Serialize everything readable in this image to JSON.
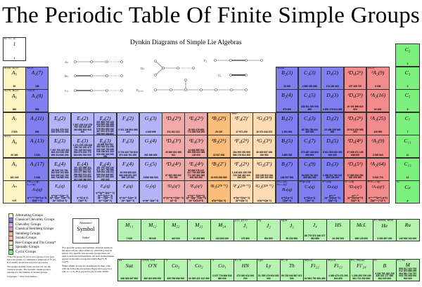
{
  "title": "The Periodic Table Of Finite Simple Groups",
  "dynkin": {
    "title": "Dynkin Diagrams of Simple Lie Algebras",
    "labels": {
      "an": "Aₙ",
      "bn": "Bₙ",
      "cn": "Cₙ",
      "dn": "Dₙ",
      "f4": "F₄",
      "g2": "G₂",
      "e": "E₆,₇,₈"
    }
  },
  "colors": {
    "alternating": "#fcf4c4",
    "classical_chevalley": "#7f7ff2",
    "chevalley": "#b4b4fa",
    "classical_steinberg": "#f28c8c",
    "steinberg": "#f4a9a9",
    "suzuki": "#fbbd7a",
    "ree": "#fddcb6",
    "sporadic": "#b6f2b0",
    "cyclic": "#7cf07c"
  },
  "key_cell": {
    "top": "A₁, C₁, Z₁",
    "sym": "1",
    "ord": "1"
  },
  "table": {
    "rows": [
      [
        {
          "col": 0,
          "t": "alternating",
          "top": "A₁(4), A₁(5)",
          "sym": "A₅",
          "ord": "60"
        },
        {
          "col": 1,
          "t": "classical_chevalley",
          "top": "A₂(2)",
          "sym": "A₁(7)",
          "ord": "168"
        },
        {
          "col": 12,
          "t": "classical_chevalley",
          "top": "²A₃(4)",
          "sym": "B₂(3)",
          "ord": "25 920"
        },
        {
          "col": 13,
          "t": "classical_chevalley",
          "top": "",
          "sym": "C₃(3)",
          "ord": "4 585 351 680"
        },
        {
          "col": 14,
          "t": "classical_chevalley",
          "top": "",
          "sym": "D₄(2)",
          "ord": "174 182 400"
        },
        {
          "col": 15,
          "t": "classical_steinberg",
          "top": "",
          "sym": "²D₄(2²)",
          "ord": "197 406 720"
        },
        {
          "col": 16,
          "t": "classical_steinberg",
          "top": "G₂(2)′",
          "sym": "²A₂(9)",
          "ord": "6 048"
        }
      ],
      [
        {
          "col": 0,
          "t": "alternating",
          "top": "A₁(9), B₂(2)′",
          "sym": "A₆",
          "ord": "360"
        },
        {
          "col": 1,
          "t": "classical_chevalley",
          "top": "²G₂(3)′",
          "sym": "A₁(8)",
          "ord": "504"
        },
        {
          "col": 12,
          "t": "classical_chevalley",
          "top": "",
          "sym": "B₂(4)",
          "ord": "979 200"
        },
        {
          "col": 13,
          "t": "classical_chevalley",
          "top": "",
          "sym": "C₃(5)",
          "ord": "228 501 000 000 000"
        },
        {
          "col": 14,
          "t": "classical_chevalley",
          "top": "",
          "sym": "D₄(3)",
          "ord": "4 952 179 814 400"
        },
        {
          "col": 15,
          "t": "classical_steinberg",
          "top": "",
          "sym": "²D₄(3²)",
          "ord": "10 151 968 619 520"
        },
        {
          "col": 16,
          "t": "classical_steinberg",
          "top": "",
          "sym": "²A₂(16)",
          "ord": "62 400"
        }
      ],
      [
        {
          "col": 0,
          "t": "alternating",
          "top": "",
          "sym": "A₇",
          "ord": "2 520"
        },
        {
          "col": 1,
          "t": "classical_chevalley",
          "top": "",
          "sym": "A₁(11)",
          "ord": "660"
        },
        {
          "col": 2,
          "t": "chevalley",
          "top": "",
          "sym": "E₆(2)",
          "ord": "214 841 575 522 005 575 270 400"
        },
        {
          "col": 3,
          "t": "chevalley",
          "top": "",
          "sym": "E₇(2)",
          "ord": "7 997 476 042 075 799 759 100 487 262 680 802 918 400"
        },
        {
          "col": 4,
          "t": "chevalley",
          "top": "",
          "sym": "E₈(2)",
          "ord": "337 804 753 143 634 806 261 388 190 614 085 595 079 991 692 242 467 651 576 160 959 909 068 800 000"
        },
        {
          "col": 5,
          "t": "chevalley",
          "top": "",
          "sym": "F₄(2)",
          "ord": "3 311 126 603 366 400"
        },
        {
          "col": 6,
          "t": "chevalley",
          "top": "",
          "sym": "G₂(3)",
          "ord": "4 245 696"
        },
        {
          "col": 7,
          "t": "steinberg",
          "top": "",
          "sym": "³D₄(2³)",
          "ord": "211 341 312"
        },
        {
          "col": 8,
          "t": "steinberg",
          "top": "",
          "sym": "²E₆(2²)",
          "ord": "76 532 479 683 774 853 939 200"
        },
        {
          "col": 9,
          "t": "suzuki",
          "top": "",
          "sym": "²B₂(2³)",
          "ord": "29 120"
        },
        {
          "col": 10,
          "t": "ree",
          "top": "Tits*",
          "sym": "²F₄(2)′",
          "ord": "17 971 200"
        },
        {
          "col": 11,
          "t": "ree",
          "top": "",
          "sym": "²G₂(3³)",
          "ord": "10 073 444 472"
        },
        {
          "col": 12,
          "t": "classical_chevalley",
          "top": "",
          "sym": "B₃(2)",
          "ord": "1 451 520"
        },
        {
          "col": 13,
          "t": "classical_chevalley",
          "top": "",
          "sym": "C₄(3)",
          "ord": "65 784 756 654 489 600"
        },
        {
          "col": 14,
          "t": "classical_chevalley",
          "top": "",
          "sym": "D₅(2)",
          "ord": "23 499 295 948 800"
        },
        {
          "col": 15,
          "t": "classical_steinberg",
          "top": "",
          "sym": "²D₅(2²)",
          "ord": "25 015 379 558 400"
        },
        {
          "col": 16,
          "t": "classical_steinberg",
          "top": "",
          "sym": "²A₂(25)",
          "ord": "126 000"
        }
      ],
      [
        {
          "col": 0,
          "t": "alternating",
          "top": "A₃(2)",
          "sym": "A₈",
          "ord": "20 160"
        },
        {
          "col": 1,
          "t": "classical_chevalley",
          "top": "",
          "sym": "A₁(13)",
          "ord": "1 092"
        },
        {
          "col": 2,
          "t": "chevalley",
          "top": "",
          "sym": "E₆(3)",
          "ord": "7 257 703 347 541 463 210 028 258 395 214 643 200"
        },
        {
          "col": 3,
          "t": "chevalley",
          "top": "",
          "sym": "E₇(3)",
          "ord": "1 271 375 236 818 136 742 240 479 751 139 021 644 554 379 203 770 624 000 000 000"
        },
        {
          "col": 4,
          "t": "chevalley",
          "top": "",
          "sym": "E₈(3)",
          "ord": "18 830 052 912 953 932 311 099 032 439 793 939 036 166 811 300 000 000 000 000 000"
        },
        {
          "col": 5,
          "t": "chevalley",
          "top": "",
          "sym": "F₄(3)",
          "ord": "5 734 420 792 816 671 844 761 600"
        },
        {
          "col": 6,
          "t": "chevalley",
          "top": "",
          "sym": "G₂(4)",
          "ord": "251 596 800"
        },
        {
          "col": 7,
          "t": "steinberg",
          "top": "",
          "sym": "³D₄(3³)",
          "ord": "20 560 831 566 912"
        },
        {
          "col": 8,
          "t": "steinberg",
          "top": "",
          "sym": "²E₆(3²)",
          "ord": "14 636 855 916 969 695 633 965 120 000"
        },
        {
          "col": 9,
          "t": "suzuki",
          "top": "",
          "sym": "²B₂(2⁵)",
          "ord": "32 537 600"
        },
        {
          "col": 10,
          "t": "ree",
          "top": "",
          "sym": "²F₄(2³)",
          "ord": "264 905 352 699 586 176 614 400"
        },
        {
          "col": 11,
          "t": "ree",
          "top": "",
          "sym": "²G₂(3⁵)",
          "ord": "49 825 657 439 340 552"
        },
        {
          "col": 12,
          "t": "classical_chevalley",
          "top": "",
          "sym": "B₂(5)",
          "ord": "4 680 000"
        },
        {
          "col": 13,
          "t": "classical_chevalley",
          "top": "",
          "sym": "C₃(7)",
          "ord": "273 457 218 604 953 600"
        },
        {
          "col": 14,
          "t": "classical_chevalley",
          "top": "",
          "sym": "D₄(5)",
          "ord": "8 911 539 000 000 000 000"
        },
        {
          "col": 15,
          "t": "classical_steinberg",
          "top": "",
          "sym": "²D₄(4²)",
          "ord": "67 536 471 195 648 000"
        },
        {
          "col": 16,
          "t": "classical_steinberg",
          "top": "",
          "sym": "²A₃(9)",
          "ord": "3 265 920"
        }
      ],
      [
        {
          "col": 0,
          "t": "alternating",
          "top": "",
          "sym": "A₉",
          "ord": "181 440"
        },
        {
          "col": 1,
          "t": "classical_chevalley",
          "top": "",
          "sym": "A₁(17)",
          "ord": "2 448"
        },
        {
          "col": 2,
          "t": "chevalley",
          "top": "",
          "sym": "E₆(4)",
          "ord": "85 528 710 781 342 640 103 833 619 055 142 765 466 746 880 000"
        },
        {
          "col": 3,
          "t": "chevalley",
          "top": "",
          "sym": "E₇(4)",
          "ord": "111 131 458 114 940 385 379 597 233 477 884 941 280 664 074 427 160 058 165 808 312 238 080 000"
        },
        {
          "col": 4,
          "t": "chevalley",
          "top": "",
          "sym": "E₈(4)",
          "ord": "191 797 292 142 671 067 785 580 289 004 148 102 069 024 046 467 184 470 681 600 000 000"
        },
        {
          "col": 5,
          "t": "chevalley",
          "top": "",
          "sym": "F₄(4)",
          "ord": "19 009 825 523 840 945 451 297 669 120 000"
        },
        {
          "col": 6,
          "t": "chevalley",
          "top": "",
          "sym": "G₂(5)",
          "ord": "5 859 000 000"
        },
        {
          "col": 7,
          "t": "steinberg",
          "top": "",
          "sym": "³D₄(4³)",
          "ord": "67 802 350 642 790 400"
        },
        {
          "col": 8,
          "t": "steinberg",
          "top": "",
          "sym": "²E₆(4²)",
          "ord": "85 696 576 147 617 709 485 896 772 387 584 983 695 360 000"
        },
        {
          "col": 9,
          "t": "suzuki",
          "top": "",
          "sym": "²B₂(2⁷)",
          "ord": "34 093 383 680"
        },
        {
          "col": 10,
          "t": "ree",
          "top": "",
          "sym": "²F₄(2⁵)",
          "ord": "1 318 633 155 799 729 326 462 320 640 000"
        },
        {
          "col": 11,
          "t": "ree",
          "top": "",
          "sym": "²G₂(3⁷)",
          "ord": "239 189 910 264 352 349 332 632"
        },
        {
          "col": 12,
          "t": "classical_chevalley",
          "top": "",
          "sym": "B₂(7)",
          "ord": "138 297 600"
        },
        {
          "col": 13,
          "t": "classical_chevalley",
          "top": "",
          "sym": "C₃(9)",
          "ord": "54 025 731 402 499 584 000"
        },
        {
          "col": 14,
          "t": "classical_chevalley",
          "top": "",
          "sym": "D₅(3)",
          "ord": "1 289 512 799 941 305 139 200"
        },
        {
          "col": 15,
          "t": "classical_steinberg",
          "top": "",
          "sym": "²D₄(5²)",
          "ord": "17 880 203 250 000 000 000"
        },
        {
          "col": 16,
          "t": "classical_steinberg",
          "top": "",
          "sym": "²A₂(64)",
          "ord": "5 515 776"
        }
      ],
      [
        {
          "col": 0,
          "t": "alternating",
          "top": "",
          "sym": "Aₙ",
          "ord": "n!/2"
        },
        {
          "col": 1,
          "t": "classical_chevalley",
          "top": "PSLₙ₊₁(q), Lₙ₊₁(q)",
          "sym": "Aₙ(q)",
          "ord": "qⁿ⁽ⁿ⁺¹⁾ᐟ²/(n+1,q−1) ∏(qⁱ⁺¹−1)"
        },
        {
          "col": 2,
          "t": "chevalley",
          "top": "",
          "sym": "E₆(q)",
          "ord": "q³⁶(q¹²−1)(q⁹−1)(q⁸−1)(q⁶−1)(q⁵−1)(q²−1)/(3,q−1)"
        },
        {
          "col": 3,
          "t": "chevalley",
          "top": "",
          "sym": "E₇(q)",
          "ord": "q⁶³/(2,q−1) ∏(q²ⁱ−1)"
        },
        {
          "col": 4,
          "t": "chevalley",
          "top": "",
          "sym": "E₈(q)",
          "ord": "q¹²⁰(q³⁰−1)(q²⁴−1)(q²⁰−1)(q¹⁸−1)(q¹⁴−1)(q¹²−1)(q⁸−1)(q²−1)"
        },
        {
          "col": 5,
          "t": "chevalley",
          "top": "",
          "sym": "F₄(q)",
          "ord": "q²⁴(q¹²−1)(q⁸−1)(q⁶−1)(q²−1)"
        },
        {
          "col": 6,
          "t": "chevalley",
          "top": "",
          "sym": "G₂(q)",
          "ord": "q⁶(q⁶−1)(q²−1)"
        },
        {
          "col": 7,
          "t": "steinberg",
          "top": "",
          "sym": "³D₄(q³)",
          "ord": "q¹²(q⁸+q⁴+1)(q⁶−1)(q²−1)"
        },
        {
          "col": 8,
          "t": "steinberg",
          "top": "",
          "sym": "²E₆(q²)",
          "ord": "q³⁶(q¹²−1)(q⁹+1)(q⁸−1)(q⁶−1)(q⁵+1)(q²−1)/(3,q+1)"
        },
        {
          "col": 9,
          "t": "suzuki",
          "top": "",
          "sym": "²B₂(2²ⁿ⁺¹)",
          "ord": "q²(q²+1)(q−1)"
        },
        {
          "col": 10,
          "t": "ree",
          "top": "",
          "sym": "²F₄(2²ⁿ⁺¹)",
          "ord": "q¹²(q⁶+1)(q⁴−1)(q³+1)(q−1)"
        },
        {
          "col": 11,
          "t": "ree",
          "top": "",
          "sym": "²G₂(3²ⁿ⁺¹)",
          "ord": "q³(q³+1)(q−1)"
        },
        {
          "col": 12,
          "t": "classical_chevalley",
          "top": "O₂ₙ₊₁(q), Ω₂ₙ₊₁(q)",
          "sym": "Bₙ(q)",
          "ord": "qⁿ²/(2,q−1) ∏(q²ⁱ−1)"
        },
        {
          "col": 13,
          "t": "classical_chevalley",
          "top": "PSp₂ₙ(q)",
          "sym": "Cₙ(q)",
          "ord": "qⁿ²/(2,q−1) ∏(q²ⁱ−1)"
        },
        {
          "col": 14,
          "t": "classical_chevalley",
          "top": "O⁺₂ₙ(q)",
          "sym": "Dₙ(q)",
          "ord": "qⁿ⁽ⁿ⁻¹⁾(qⁿ−1)/(4,qⁿ−1) ∏(q²ⁱ−1)"
        },
        {
          "col": 15,
          "t": "classical_steinberg",
          "top": "O⁻₂ₙ(q)",
          "sym": "²Dₙ(q²)",
          "ord": "qⁿ⁽ⁿ⁻¹⁾(qⁿ+1)/(4,qⁿ+1) ∏(q²ⁱ−1)"
        },
        {
          "col": 16,
          "t": "classical_steinberg",
          "top": "PSUₙ₊₁(q)",
          "sym": "²Aₙ(q²)",
          "ord": "qⁿ⁽ⁿ⁺¹⁾ᐟ²/(n+1,q+1) ∏(qⁱ⁺¹−(−1)ⁱ⁺¹)"
        }
      ]
    ],
    "cyclic": [
      {
        "top": "",
        "sym": "C₂",
        "ord": "2"
      },
      {
        "top": "",
        "sym": "C₃",
        "ord": "3"
      },
      {
        "top": "",
        "sym": "C₅",
        "ord": "5"
      },
      {
        "top": "",
        "sym": "C₇",
        "ord": "7"
      },
      {
        "top": "",
        "sym": "C₁₁",
        "ord": "11"
      },
      {
        "top": "",
        "sym": "C₁₃",
        "ord": "13"
      },
      {
        "top": "Zₚ",
        "sym": "Cₚ",
        "ord": "p"
      }
    ]
  },
  "legend": [
    {
      "label": "Alternating Groups",
      "t": "alternating"
    },
    {
      "label": "Classical Chevalley Groups",
      "t": "classical_chevalley"
    },
    {
      "label": "Chevalley Groups",
      "t": "chevalley"
    },
    {
      "label": "Classical Steinberg Groups",
      "t": "classical_steinberg"
    },
    {
      "label": "Steinberg Groups",
      "t": "steinberg"
    },
    {
      "label": "Suzuki Groups",
      "t": "suzuki"
    },
    {
      "label": "Ree Groups and Tits Group*",
      "t": "ree"
    },
    {
      "label": "Sporadic Groups",
      "t": "sporadic"
    },
    {
      "label": "Cyclic Groups",
      "t": "cyclic"
    }
  ],
  "key_box": {
    "alternates": "Alternates¹",
    "symbol": "Symbol",
    "order": "Order²"
  },
  "notes": {
    "tits": "*The Tits group ²F₄(2)′ is not a group of Lie type, but is the (index 2) commutator subgroup of ²F₄(2). It is usually given honorary Lie type status.",
    "classical": "The groups starting on the second row are the classical groups. The sporadic suzuki group is unrelated to the families of Suzuki groups.",
    "copyright": "Copyright © 2012 Ivan Andrus.",
    "alternates": "¹For sporadic groups and families, alternate names in the upper left are other names by which they may be known. For specific non-sporadic groups these are used to indicate isomorphisms. All such isomorphisms appear on the table except the family Bₙ(2ᵐ) ≅ Cₙ(2ᵐ).",
    "order": "²Finite simple groups are determined by their order with the following exceptions: Bₙ(q) and Cₙ(q) for q odd, n > 2; A₈ ≅ A₃(2) and A₂(4) of order 20160."
  },
  "sporadic": {
    "row1": [
      {
        "top": "",
        "sym": "M₁₁",
        "ord": "7 920"
      },
      {
        "top": "",
        "sym": "M₁₂",
        "ord": "95 040"
      },
      {
        "top": "",
        "sym": "M₂₂",
        "ord": "443 520"
      },
      {
        "top": "",
        "sym": "M₂₃",
        "ord": "10 200 960"
      },
      {
        "top": "",
        "sym": "M₂₄",
        "ord": "244 823 040"
      },
      {
        "top": "J(1), J(11)",
        "sym": "J₁",
        "ord": "175 560"
      },
      {
        "top": "HJ",
        "sym": "J₂",
        "ord": "604 800"
      },
      {
        "top": "HJM",
        "sym": "J₃",
        "ord": "50 232 960"
      },
      {
        "top": "",
        "sym": "J₄",
        "ord": "86 775 571 046 077 562 880"
      },
      {
        "top": "",
        "sym": "HS",
        "ord": "44 352 000"
      },
      {
        "top": "",
        "sym": "McL",
        "ord": "898 128 000"
      },
      {
        "top": "F₇, HHM, HTH",
        "sym": "He",
        "ord": "4 030 387 200"
      },
      {
        "top": "",
        "sym": "Ru",
        "ord": "145 926 144 000"
      }
    ],
    "row2": [
      {
        "top": "Sz",
        "sym": "Suz",
        "ord": "448 345 497 600"
      },
      {
        "top": "O'NS, O-S",
        "sym": "O′N",
        "ord": "460 815 505 920"
      },
      {
        "top": "·3",
        "sym": "Co₃",
        "ord": "495 766 656 000"
      },
      {
        "top": "·2",
        "sym": "Co₂",
        "ord": "42 305 421 312 000"
      },
      {
        "top": "·1",
        "sym": "Co₁",
        "ord": "4 157 776 806 543 360 000"
      },
      {
        "top": "F₅, D",
        "sym": "HN",
        "ord": "273 030 912 000 000"
      },
      {
        "top": "LyS",
        "sym": "Ly",
        "ord": "51 765 179 004 000 000"
      },
      {
        "top": "F₃, E",
        "sym": "Th",
        "ord": "90 745 943 887 872 000"
      },
      {
        "top": "M(22)",
        "sym": "Fi₂₂",
        "ord": "64 561 751 654 400"
      },
      {
        "top": "M(23)",
        "sym": "Fi₂₃",
        "ord": "4 089 470 473 293 004 800"
      },
      {
        "top": "F₃₊, M(24)′",
        "sym": "Fi′₂₄",
        "ord": "1 255 205 709 190 661 721 292 800"
      },
      {
        "top": "F₂",
        "sym": "B",
        "ord": "4 154 781 481 226 426 191 177 580 544 000 000"
      },
      {
        "top": "F₁, M₁",
        "sym": "M",
        "ord": "808 017 424 794 512 875 886 459 904 961 710 757 005 754 368 000 000 000"
      }
    ]
  }
}
